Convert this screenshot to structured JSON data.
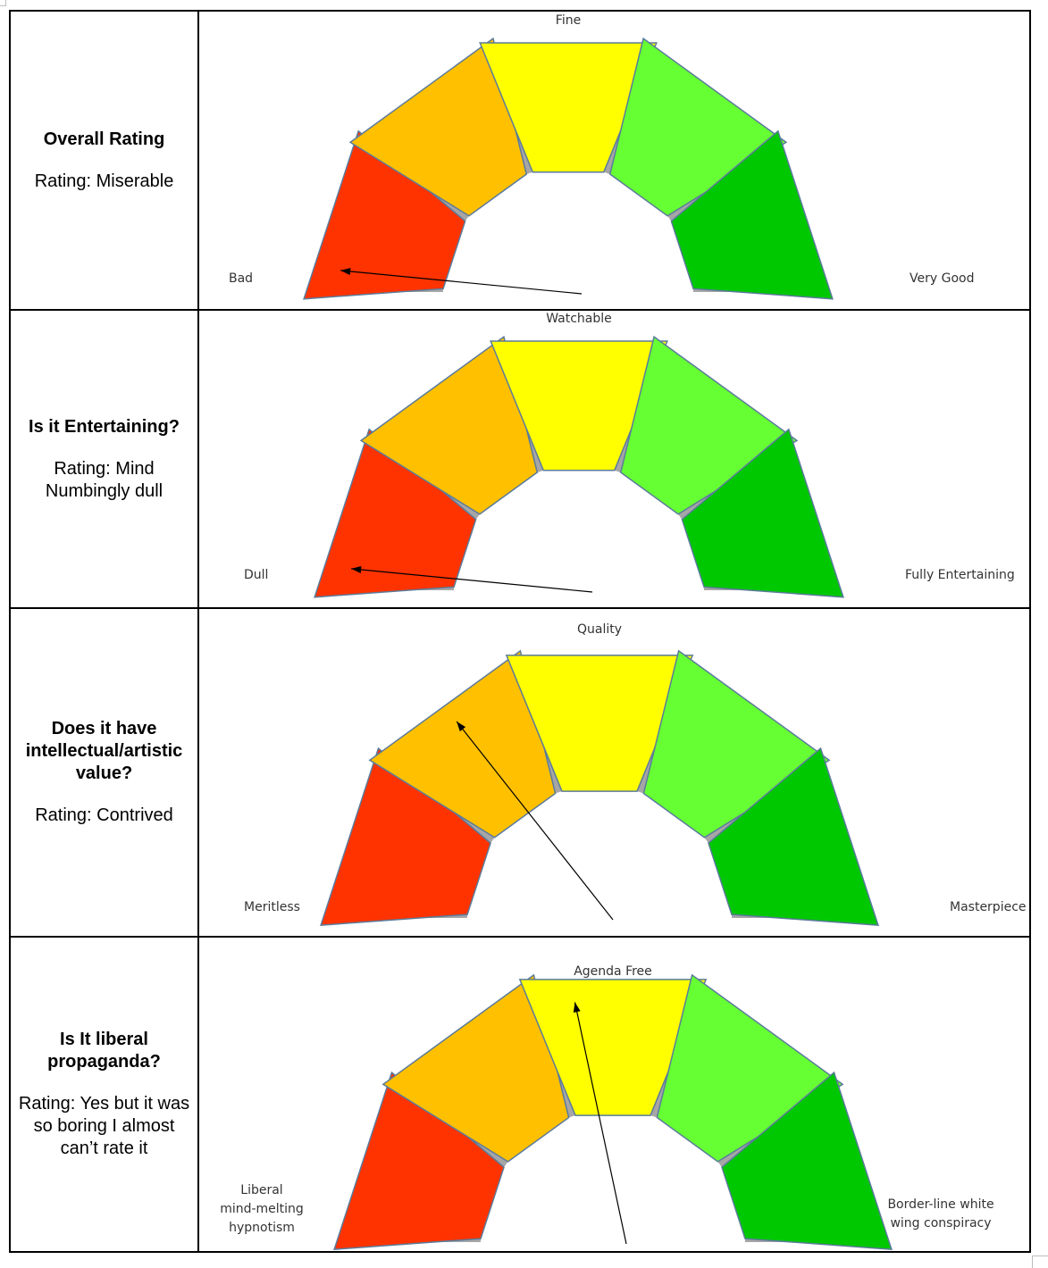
{
  "colors": {
    "band1": "#ff3300",
    "band2": "#ffc000",
    "band3": "#ffff00",
    "band4": "#66ff33",
    "band5": "#00c800",
    "ring": "#a6a6a6",
    "outline": "#5b7b9b",
    "needle": "#000000"
  },
  "rows": [
    {
      "question": "Overall Rating",
      "rating": "Rating: Miserable",
      "gauge": {
        "low_label": "Bad",
        "mid_label": "Fine",
        "high_label": "Very Good",
        "needle_level": 0.03
      }
    },
    {
      "question": "Is it Entertaining?",
      "rating": "Rating: Mind Numbingly dull",
      "gauge": {
        "low_label": "Dull",
        "mid_label": "Watchable",
        "high_label": "Fully Entertaining",
        "needle_level": 0.03
      }
    },
    {
      "question": "Does it have intellectual/artistic value?",
      "rating": "Rating: Contrived",
      "gauge": {
        "low_label": "Meritless",
        "mid_label": "Quality",
        "high_label": "Masterpiece",
        "needle_level": 0.3
      }
    },
    {
      "question": "Is It liberal propaganda?",
      "rating": "Rating: Yes but it was so boring I almost can’t rate it",
      "gauge": {
        "low_label": "Liberal mind-melting hypnotism",
        "mid_label": "Agenda Free",
        "high_label": "Border-line white wing conspiracy",
        "needle_level": 0.45
      }
    }
  ]
}
